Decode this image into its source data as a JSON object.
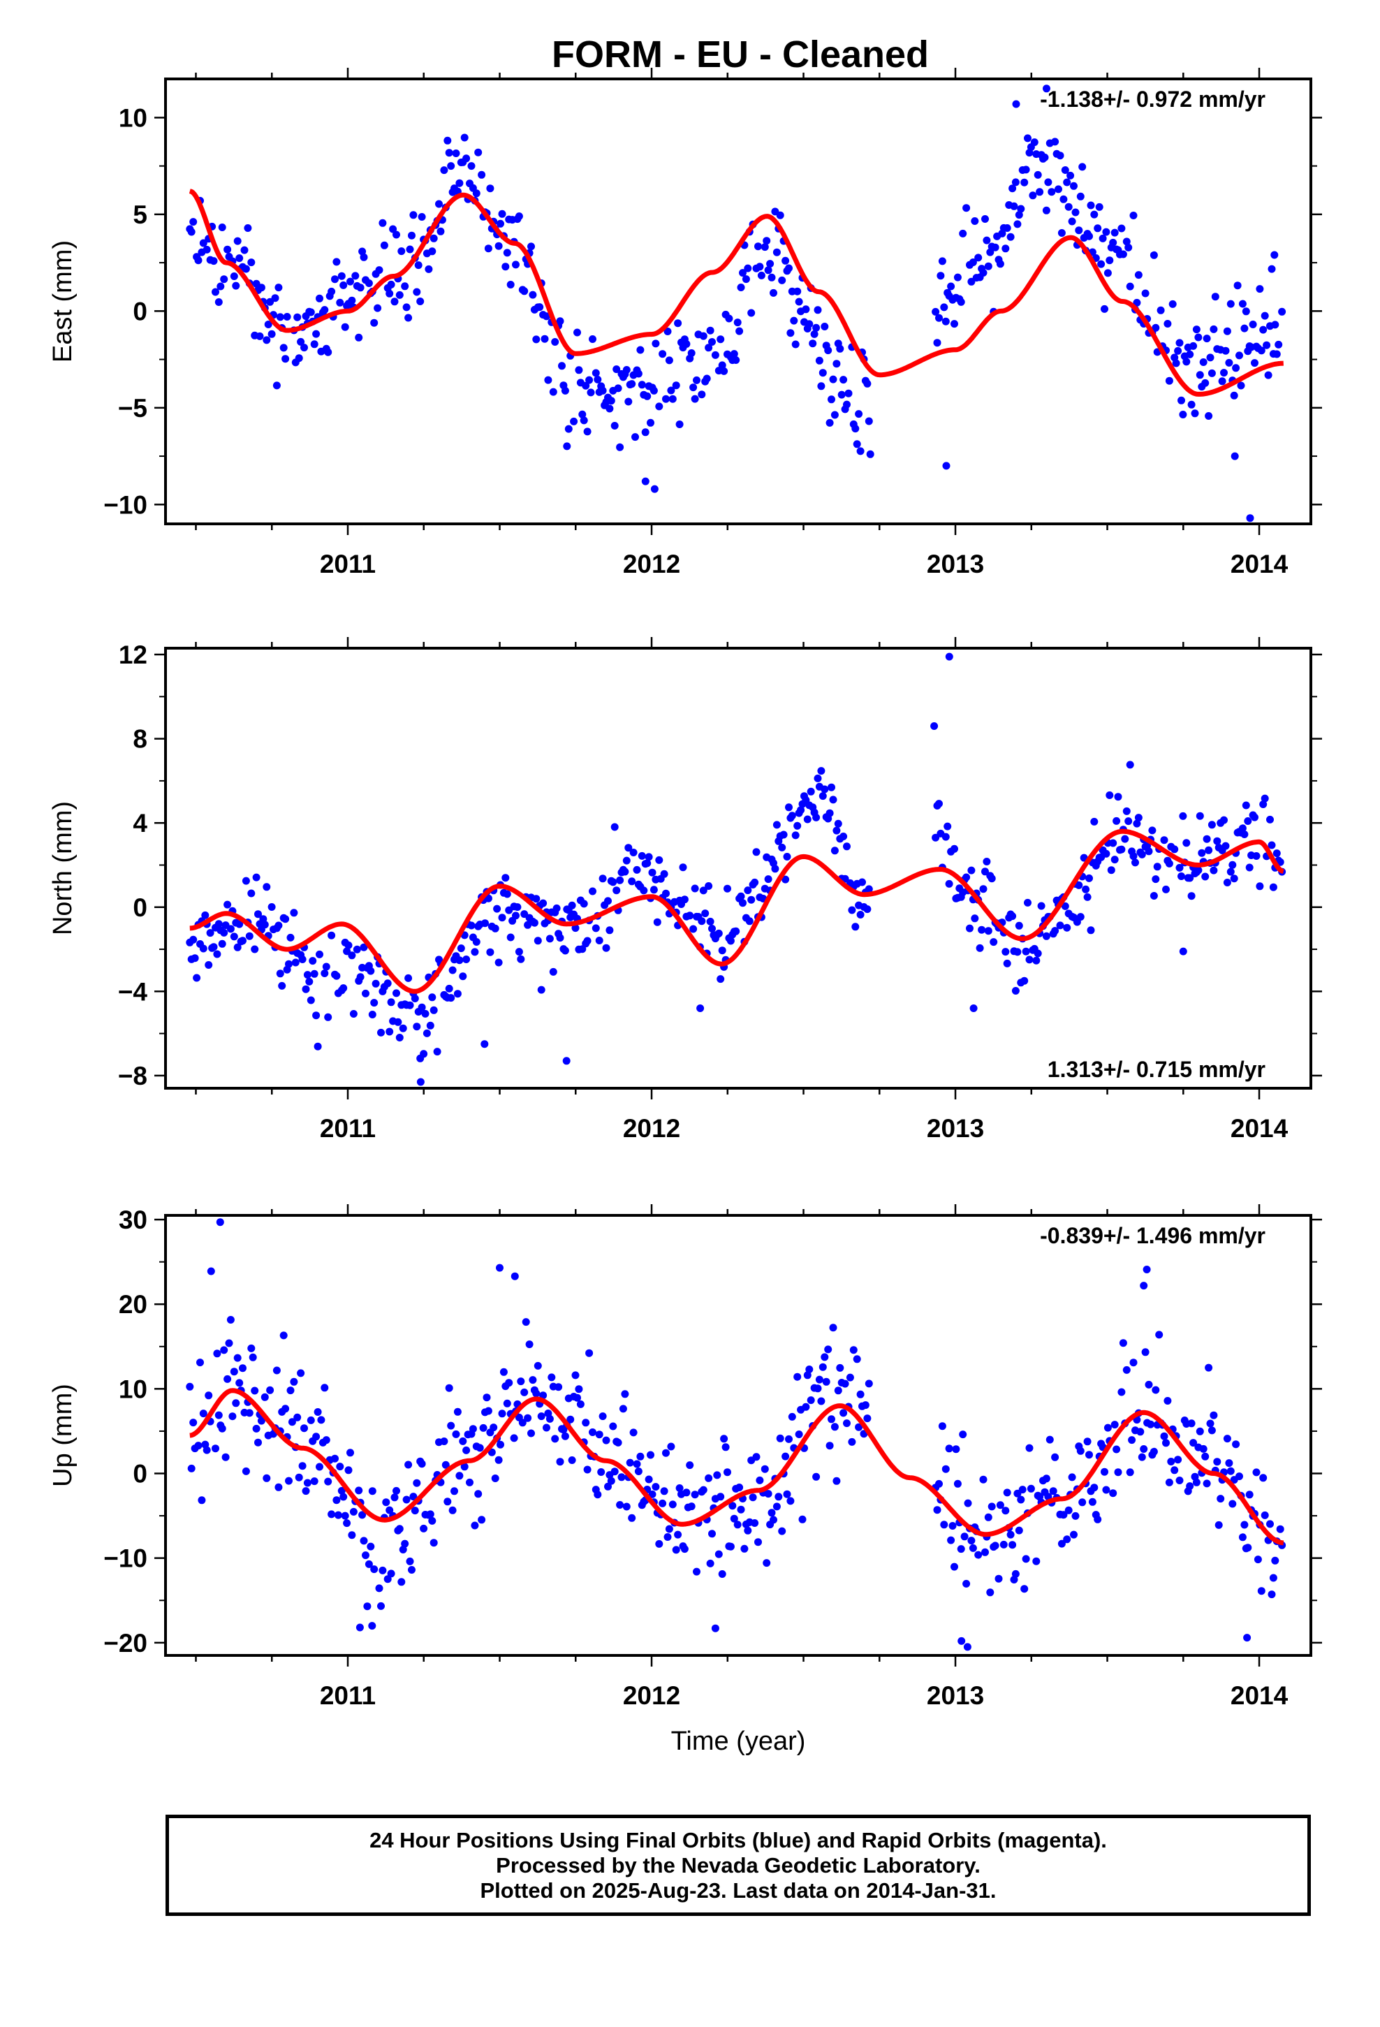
{
  "chart_data": {
    "type": "scatter",
    "title": "FORM  - EU - Cleaned",
    "xlabel": "Time (year)",
    "xlim": [
      2010.4,
      2014.17
    ],
    "xticks": [
      2011,
      2012,
      2013,
      2014
    ],
    "xtick_labels": [
      "2011",
      "2012",
      "2013",
      "2014"
    ],
    "data_range": [
      2010.48,
      2014.08
    ],
    "gaps": [
      [
        2012.72,
        2012.93
      ]
    ],
    "colors": {
      "points": "#0000ff",
      "fit": "#ff0000",
      "rapid": "#ff00ff"
    },
    "panels": [
      {
        "name": "east",
        "ylabel": "East (mm)",
        "ylim": [
          -11,
          12
        ],
        "yticks": [
          10,
          5,
          0,
          -5,
          -10
        ],
        "ytick_labels": [
          "10",
          "5",
          "0",
          "−5",
          "−10"
        ],
        "rate_label": "-1.138+/- 0.972 mm/yr",
        "rate_position": "top-right",
        "fit_curve": {
          "x": [
            2010.48,
            2010.6,
            2010.8,
            2011.0,
            2011.15,
            2011.38,
            2011.55,
            2011.75,
            2012.0,
            2012.2,
            2012.38,
            2012.55,
            2012.75,
            2013.0,
            2013.15,
            2013.38,
            2013.55,
            2013.8,
            2014.08
          ],
          "y": [
            6.2,
            2.5,
            -1.0,
            0.0,
            1.8,
            6.0,
            3.5,
            -2.2,
            -1.2,
            2.0,
            4.9,
            1.0,
            -3.3,
            -2.0,
            0.0,
            3.8,
            0.5,
            -4.3,
            -2.7
          ]
        },
        "observed_trend": {
          "x": [
            2010.48,
            2010.6,
            2010.8,
            2011.0,
            2011.15,
            2011.38,
            2011.55,
            2011.75,
            2012.0,
            2012.2,
            2012.38,
            2012.55,
            2012.68,
            2012.93,
            2013.1,
            2013.28,
            2013.5,
            2013.75,
            2014.08
          ],
          "y": [
            4.5,
            2.5,
            -1.5,
            0.3,
            1.0,
            7.0,
            3.0,
            -4.5,
            -4.0,
            -2.5,
            2.5,
            -1.5,
            -4.5,
            0.0,
            3.0,
            7.8,
            3.0,
            -2.5,
            -1.5
          ]
        },
        "scatter_sd": 1.4,
        "outliers": [
          [
            2011.98,
            -8.8
          ],
          [
            2012.01,
            -9.2
          ],
          [
            2012.97,
            -8.0
          ],
          [
            2013.97,
            -10.7
          ],
          [
            2013.3,
            11.5
          ],
          [
            2013.2,
            10.7
          ],
          [
            2012.72,
            -7.4
          ],
          [
            2013.92,
            -7.5
          ],
          [
            2014.05,
            2.9
          ]
        ]
      },
      {
        "name": "north",
        "ylabel": "North (mm)",
        "ylim": [
          -8.6,
          12.3
        ],
        "yticks": [
          12,
          8,
          4,
          0,
          -4,
          -8
        ],
        "ytick_labels": [
          "12",
          "8",
          "4",
          "0",
          "−4",
          "−8"
        ],
        "rate_label": "1.313+/- 0.715 mm/yr",
        "rate_position": "bottom-right",
        "fit_curve": {
          "x": [
            2010.48,
            2010.6,
            2010.8,
            2010.98,
            2011.22,
            2011.5,
            2011.72,
            2012.0,
            2012.23,
            2012.5,
            2012.7,
            2012.95,
            2013.22,
            2013.55,
            2013.8,
            2014.0,
            2014.08
          ],
          "y": [
            -1.0,
            -0.3,
            -2.0,
            -0.8,
            -4.0,
            1.0,
            -0.8,
            0.5,
            -2.7,
            2.4,
            0.6,
            1.8,
            -1.5,
            3.6,
            2.0,
            3.1,
            1.7
          ]
        },
        "observed_trend": {
          "x": [
            2010.48,
            2010.7,
            2010.9,
            2011.05,
            2011.22,
            2011.5,
            2011.72,
            2011.95,
            2012.1,
            2012.25,
            2012.35,
            2012.55,
            2012.68,
            2012.93,
            2013.1,
            2013.2,
            2013.35,
            2013.55,
            2013.75,
            2013.95,
            2014.08
          ],
          "y": [
            -1.5,
            -1.0,
            -3.5,
            -3.0,
            -5.5,
            0.0,
            -1.0,
            1.5,
            0.0,
            -1.5,
            1.5,
            5.5,
            0.5,
            3.0,
            0.0,
            -2.0,
            0.0,
            3.5,
            2.0,
            3.5,
            2.0
          ]
        },
        "scatter_sd": 1.0,
        "outliers": [
          [
            2012.93,
            8.6
          ],
          [
            2012.98,
            11.9
          ],
          [
            2011.72,
            -7.3
          ],
          [
            2012.16,
            -4.8
          ],
          [
            2013.06,
            -4.8
          ],
          [
            2011.45,
            -6.5
          ],
          [
            2013.75,
            -2.1
          ],
          [
            2011.24,
            -8.3
          ]
        ]
      },
      {
        "name": "up",
        "ylabel": "Up (mm)",
        "ylim": [
          -21.5,
          30.5
        ],
        "yticks": [
          30,
          20,
          10,
          0,
          -10,
          -20
        ],
        "ytick_labels": [
          "30",
          "20",
          "10",
          "0",
          "−10",
          "−20"
        ],
        "rate_label": "-0.839+/- 1.496 mm/yr",
        "rate_position": "top-right",
        "fit_curve": {
          "x": [
            2010.48,
            2010.62,
            2010.85,
            2011.12,
            2011.4,
            2011.62,
            2011.85,
            2012.1,
            2012.35,
            2012.62,
            2012.85,
            2013.1,
            2013.35,
            2013.62,
            2013.85,
            2014.08
          ],
          "y": [
            4.5,
            9.8,
            3.0,
            -5.5,
            1.5,
            8.8,
            1.5,
            -6.0,
            -2.0,
            8.0,
            -0.5,
            -7.2,
            -3.0,
            7.2,
            0.0,
            -8.2
          ]
        },
        "observed_trend": {
          "x": [
            2010.48,
            2010.62,
            2010.85,
            2011.12,
            2011.4,
            2011.62,
            2011.85,
            2012.1,
            2012.35,
            2012.62,
            2012.85,
            2013.1,
            2013.35,
            2013.62,
            2013.85,
            2014.08
          ],
          "y": [
            6.0,
            10.0,
            4.0,
            -8.0,
            3.0,
            9.5,
            2.5,
            -6.5,
            -3.0,
            9.0,
            -1.0,
            -7.0,
            -3.0,
            8.0,
            0.0,
            -9.0
          ]
        },
        "scatter_sd": 4.2,
        "outliers": [
          [
            2010.58,
            29.7
          ],
          [
            2010.55,
            23.9
          ],
          [
            2011.5,
            24.3
          ],
          [
            2011.55,
            23.3
          ],
          [
            2013.63,
            24.1
          ],
          [
            2013.62,
            22.2
          ],
          [
            2013.04,
            -20.5
          ],
          [
            2013.02,
            -19.8
          ],
          [
            2013.96,
            -19.4
          ],
          [
            2011.04,
            -18.2
          ],
          [
            2011.08,
            -18.0
          ],
          [
            2012.21,
            -18.3
          ]
        ]
      }
    ]
  },
  "footer": {
    "line1": "24 Hour Positions Using Final Orbits (blue) and Rapid Orbits (magenta).",
    "line2": "Processed by the Nevada Geodetic Laboratory.",
    "line3": "Plotted on 2025-Aug-23. Last data on 2014-Jan-31."
  }
}
